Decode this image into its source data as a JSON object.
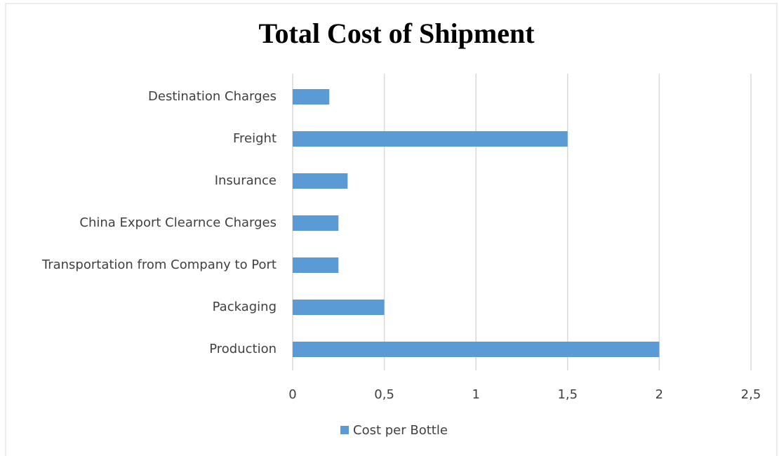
{
  "chart_data": {
    "type": "bar",
    "orientation": "horizontal",
    "title": "Total Cost of Shipment",
    "categories": [
      "Production",
      "Packaging",
      "Transportation from Company to Port",
      "China Export Clearnce Charges",
      "Insurance",
      "Freight",
      "Destination Charges"
    ],
    "series": [
      {
        "name": "Cost per Bottle",
        "color": "#5b9bd5",
        "values": [
          2,
          0.5,
          0.25,
          0.25,
          0.3,
          1.5,
          0.2
        ]
      }
    ],
    "xlim": [
      0,
      2.5
    ],
    "xticks": [
      0,
      {
        "value": 0.5,
        "label": "0,5"
      },
      1,
      {
        "value": 1.5,
        "label": "1,5"
      },
      2,
      {
        "value": 2.5,
        "label": "2,5"
      }
    ],
    "grid": true,
    "legend": "bottom"
  }
}
